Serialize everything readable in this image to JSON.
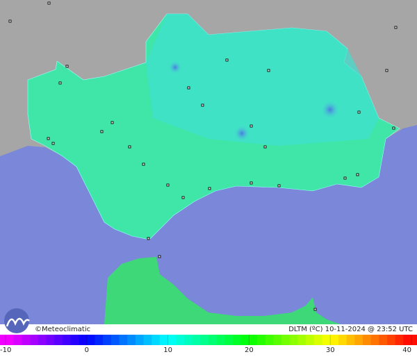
{
  "footer": {
    "credit": "©Meteoclimatic",
    "caption": "DLTM (ºC)  10-11-2024 @ 23:52 UTC"
  },
  "scale": {
    "min": -10,
    "max": 40,
    "ticks": [
      -10,
      0,
      10,
      20,
      30,
      40
    ]
  }
}
